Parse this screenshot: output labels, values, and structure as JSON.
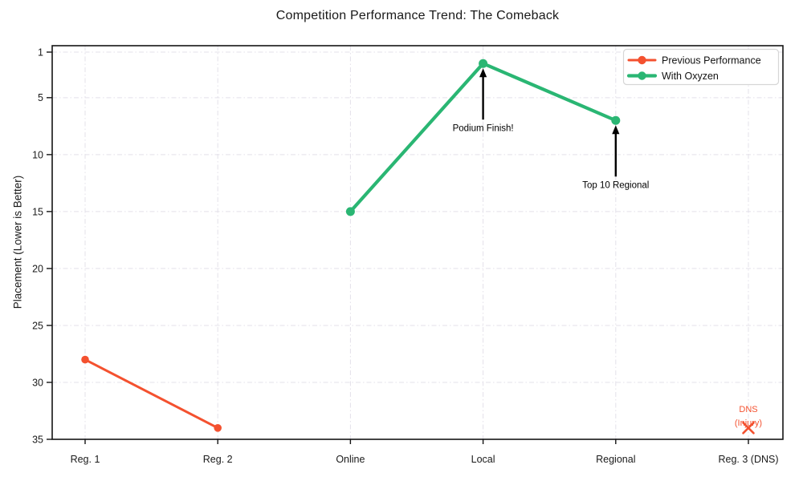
{
  "chart_data": {
    "type": "line",
    "title": "Competition Performance Trend: The Comeback",
    "xlabel": "",
    "ylabel": "Placement (Lower is Better)",
    "categories": [
      "Reg. 1",
      "Reg. 2",
      "Online",
      "Local",
      "Regional",
      "Reg. 3 (DNS)"
    ],
    "y_axis": {
      "ticks": [
        1,
        5,
        10,
        15,
        20,
        25,
        30,
        35
      ],
      "inverted": true,
      "top_value": 1,
      "bottom_value": 35
    },
    "grid": "dashed",
    "legend": {
      "position": "upper right"
    },
    "series": [
      {
        "name": "Previous Performance",
        "color": "#f4512f",
        "marker": "circle",
        "points": [
          {
            "category": "Reg. 1",
            "value": 28
          },
          {
            "category": "Reg. 2",
            "value": 34
          }
        ]
      },
      {
        "name": "With Oxyzen",
        "color": "#2ab673",
        "marker": "circle",
        "points": [
          {
            "category": "Online",
            "value": 15
          },
          {
            "category": "Local",
            "value": 2
          },
          {
            "category": "Regional",
            "value": 7
          }
        ]
      }
    ],
    "annotations": [
      {
        "text": "Podium Finish!",
        "category": "Local",
        "value": 2,
        "style": "arrow",
        "color": "#000000"
      },
      {
        "text": "Top 10 Regional",
        "category": "Regional",
        "value": 7,
        "style": "arrow",
        "color": "#000000"
      },
      {
        "text": "DNS\n(Injury)",
        "category": "Reg. 3 (DNS)",
        "value": 34,
        "style": "x-marker",
        "color": "#f4512f"
      }
    ],
    "colors": {
      "background": "#ffffff",
      "grid": "#e3e0e9",
      "frame": "#141414",
      "text": "#1a1a1a",
      "legend_border": "#d6d6d6"
    }
  }
}
